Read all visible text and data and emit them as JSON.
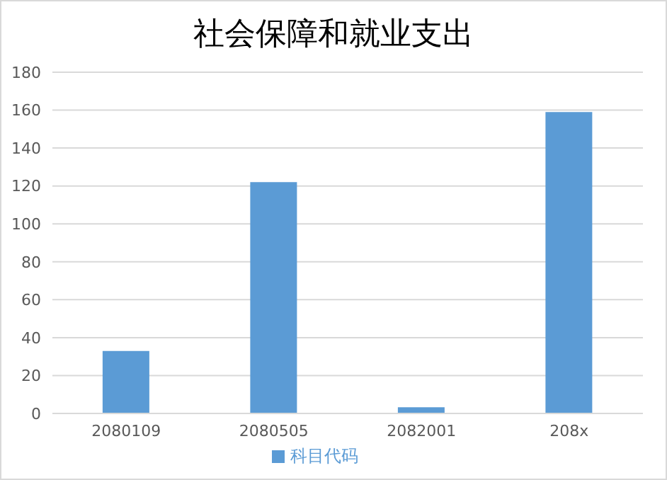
{
  "chart_data": {
    "type": "bar",
    "title": "社会保障和就业支出",
    "categories": [
      "2080109",
      "2080505",
      "2082001",
      "208x"
    ],
    "series": [
      {
        "name": "科目代码",
        "color": "#5b9bd5",
        "values": [
          33,
          122,
          3.3,
          159
        ]
      }
    ],
    "ylim": [
      0,
      180
    ],
    "yticks": [
      0,
      20,
      40,
      60,
      80,
      100,
      120,
      140,
      160,
      180
    ],
    "grid": "y",
    "legend": "bottom"
  }
}
